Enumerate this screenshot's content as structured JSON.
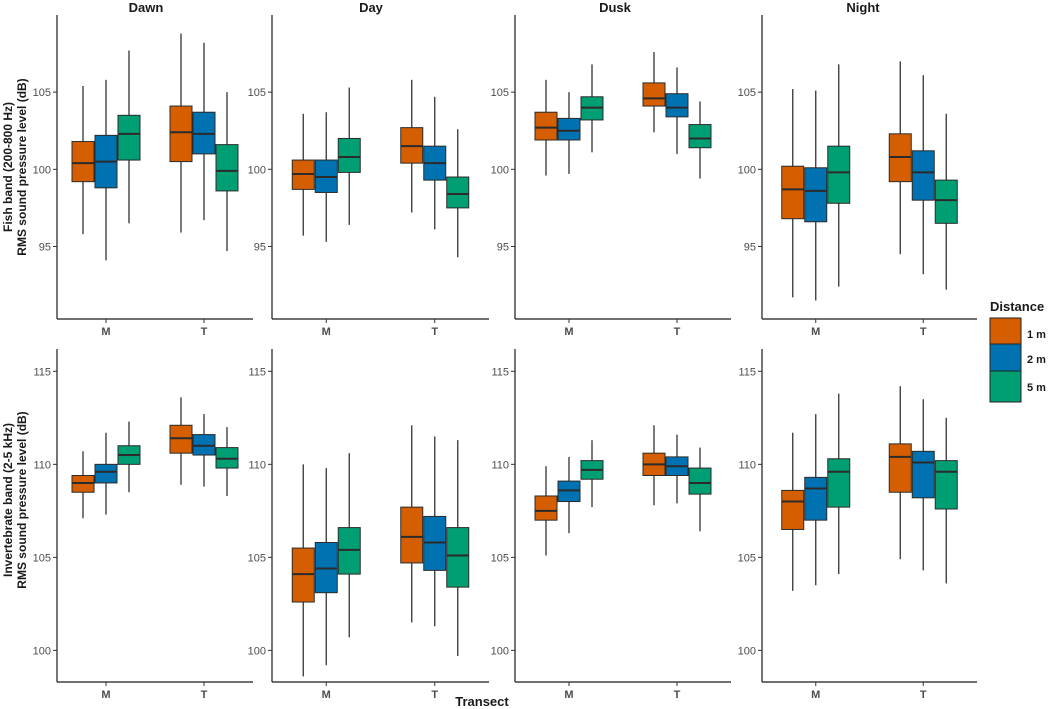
{
  "chart_data": {
    "type": "boxplot",
    "periods": [
      "Dawn",
      "Day",
      "Dusk",
      "Night"
    ],
    "categories": [
      "M",
      "T"
    ],
    "xlabel": "Transect",
    "legend": {
      "title": "Distance",
      "placement": "right",
      "entries": [
        {
          "label": "1 m",
          "color": "#D55E00"
        },
        {
          "label": "2 m",
          "color": "#0072B2"
        },
        {
          "label": "5 m",
          "color": "#009E73"
        }
      ]
    },
    "rows": [
      {
        "band": "fish",
        "ylabel_line1": "Fish band (200-800 Hz)",
        "ylabel_line2": "RMS sound pressure level (dB)",
        "ylim": [
          90.3,
          110
        ],
        "yticks": [
          95,
          100,
          105
        ],
        "panels": [
          {
            "period": "Dawn",
            "groups": [
              {
                "category": "M",
                "boxes": [
                  {
                    "min": 95.8,
                    "q1": 99.2,
                    "median": 100.4,
                    "q3": 101.8,
                    "max": 105.4
                  },
                  {
                    "min": 94.1,
                    "q1": 98.8,
                    "median": 100.5,
                    "q3": 102.2,
                    "max": 105.8
                  },
                  {
                    "min": 96.5,
                    "q1": 100.6,
                    "median": 102.3,
                    "q3": 103.5,
                    "max": 107.7
                  }
                ]
              },
              {
                "category": "T",
                "boxes": [
                  {
                    "min": 95.9,
                    "q1": 100.5,
                    "median": 102.4,
                    "q3": 104.1,
                    "max": 108.8
                  },
                  {
                    "min": 96.7,
                    "q1": 101.0,
                    "median": 102.3,
                    "q3": 103.7,
                    "max": 108.2
                  },
                  {
                    "min": 94.7,
                    "q1": 98.6,
                    "median": 99.9,
                    "q3": 101.6,
                    "max": 105.0
                  }
                ]
              }
            ]
          },
          {
            "period": "Day",
            "groups": [
              {
                "category": "M",
                "boxes": [
                  {
                    "min": 95.7,
                    "q1": 98.7,
                    "median": 99.7,
                    "q3": 100.6,
                    "max": 103.6
                  },
                  {
                    "min": 95.3,
                    "q1": 98.5,
                    "median": 99.5,
                    "q3": 100.6,
                    "max": 103.7
                  },
                  {
                    "min": 96.4,
                    "q1": 99.8,
                    "median": 100.8,
                    "q3": 102.0,
                    "max": 105.3
                  }
                ]
              },
              {
                "category": "T",
                "boxes": [
                  {
                    "min": 97.2,
                    "q1": 100.4,
                    "median": 101.5,
                    "q3": 102.7,
                    "max": 105.8
                  },
                  {
                    "min": 96.1,
                    "q1": 99.3,
                    "median": 100.4,
                    "q3": 101.5,
                    "max": 104.7
                  },
                  {
                    "min": 94.3,
                    "q1": 97.5,
                    "median": 98.4,
                    "q3": 99.5,
                    "max": 102.6
                  }
                ]
              }
            ]
          },
          {
            "period": "Dusk",
            "groups": [
              {
                "category": "M",
                "boxes": [
                  {
                    "min": 99.6,
                    "q1": 101.9,
                    "median": 102.7,
                    "q3": 103.7,
                    "max": 105.8
                  },
                  {
                    "min": 99.7,
                    "q1": 101.9,
                    "median": 102.5,
                    "q3": 103.3,
                    "max": 105.0
                  },
                  {
                    "min": 101.1,
                    "q1": 103.2,
                    "median": 104.0,
                    "q3": 104.7,
                    "max": 106.8
                  }
                ]
              },
              {
                "category": "T",
                "boxes": [
                  {
                    "min": 102.4,
                    "q1": 104.1,
                    "median": 104.6,
                    "q3": 105.6,
                    "max": 107.6
                  },
                  {
                    "min": 101.0,
                    "q1": 103.4,
                    "median": 104.0,
                    "q3": 104.9,
                    "max": 106.6
                  },
                  {
                    "min": 99.4,
                    "q1": 101.4,
                    "median": 102.0,
                    "q3": 102.9,
                    "max": 104.4
                  }
                ]
              }
            ]
          },
          {
            "period": "Night",
            "groups": [
              {
                "category": "M",
                "boxes": [
                  {
                    "min": 91.7,
                    "q1": 96.8,
                    "median": 98.7,
                    "q3": 100.2,
                    "max": 105.2
                  },
                  {
                    "min": 91.5,
                    "q1": 96.6,
                    "median": 98.6,
                    "q3": 100.1,
                    "max": 105.1
                  },
                  {
                    "min": 92.4,
                    "q1": 97.8,
                    "median": 99.8,
                    "q3": 101.5,
                    "max": 106.8
                  }
                ]
              },
              {
                "category": "T",
                "boxes": [
                  {
                    "min": 94.5,
                    "q1": 99.2,
                    "median": 100.8,
                    "q3": 102.3,
                    "max": 107.0
                  },
                  {
                    "min": 93.2,
                    "q1": 98.0,
                    "median": 99.8,
                    "q3": 101.2,
                    "max": 106.1
                  },
                  {
                    "min": 92.2,
                    "q1": 96.5,
                    "median": 98.0,
                    "q3": 99.3,
                    "max": 103.6
                  }
                ]
              }
            ]
          }
        ]
      },
      {
        "band": "invertebrate",
        "ylabel_line1": "Invertebrate band (2-5 kHz)",
        "ylabel_line2": "RMS sound pressure level (dB)",
        "ylim": [
          98.3,
          116.2
        ],
        "yticks": [
          100,
          105,
          110,
          115
        ],
        "panels": [
          {
            "period": "Dawn",
            "groups": [
              {
                "category": "M",
                "boxes": [
                  {
                    "min": 107.1,
                    "q1": 108.5,
                    "median": 109.0,
                    "q3": 109.4,
                    "max": 110.7
                  },
                  {
                    "min": 107.3,
                    "q1": 109.0,
                    "median": 109.6,
                    "q3": 110.0,
                    "max": 111.7
                  },
                  {
                    "min": 108.5,
                    "q1": 110.0,
                    "median": 110.5,
                    "q3": 111.0,
                    "max": 112.3
                  }
                ]
              },
              {
                "category": "T",
                "boxes": [
                  {
                    "min": 108.9,
                    "q1": 110.6,
                    "median": 111.4,
                    "q3": 112.1,
                    "max": 113.6
                  },
                  {
                    "min": 108.8,
                    "q1": 110.5,
                    "median": 111.0,
                    "q3": 111.6,
                    "max": 112.7
                  },
                  {
                    "min": 108.3,
                    "q1": 109.8,
                    "median": 110.3,
                    "q3": 110.9,
                    "max": 112.0
                  }
                ]
              }
            ]
          },
          {
            "period": "Day",
            "groups": [
              {
                "category": "M",
                "boxes": [
                  {
                    "min": 98.6,
                    "q1": 102.6,
                    "median": 104.1,
                    "q3": 105.5,
                    "max": 110.0
                  },
                  {
                    "min": 99.2,
                    "q1": 103.1,
                    "median": 104.4,
                    "q3": 105.8,
                    "max": 109.8
                  },
                  {
                    "min": 100.7,
                    "q1": 104.1,
                    "median": 105.4,
                    "q3": 106.6,
                    "max": 110.6
                  }
                ]
              },
              {
                "category": "T",
                "boxes": [
                  {
                    "min": 101.5,
                    "q1": 104.7,
                    "median": 106.1,
                    "q3": 107.7,
                    "max": 112.1
                  },
                  {
                    "min": 101.3,
                    "q1": 104.3,
                    "median": 105.8,
                    "q3": 107.2,
                    "max": 111.5
                  },
                  {
                    "min": 99.7,
                    "q1": 103.4,
                    "median": 105.1,
                    "q3": 106.6,
                    "max": 111.3
                  }
                ]
              }
            ]
          },
          {
            "period": "Dusk",
            "groups": [
              {
                "category": "M",
                "boxes": [
                  {
                    "min": 105.1,
                    "q1": 107.0,
                    "median": 107.5,
                    "q3": 108.3,
                    "max": 109.9
                  },
                  {
                    "min": 106.3,
                    "q1": 108.0,
                    "median": 108.6,
                    "q3": 109.1,
                    "max": 110.4
                  },
                  {
                    "min": 107.7,
                    "q1": 109.2,
                    "median": 109.7,
                    "q3": 110.2,
                    "max": 111.3
                  }
                ]
              },
              {
                "category": "T",
                "boxes": [
                  {
                    "min": 107.8,
                    "q1": 109.4,
                    "median": 110.0,
                    "q3": 110.6,
                    "max": 112.1
                  },
                  {
                    "min": 107.9,
                    "q1": 109.4,
                    "median": 109.9,
                    "q3": 110.4,
                    "max": 111.6
                  },
                  {
                    "min": 106.4,
                    "q1": 108.4,
                    "median": 109.0,
                    "q3": 109.8,
                    "max": 110.9
                  }
                ]
              }
            ]
          },
          {
            "period": "Night",
            "groups": [
              {
                "category": "M",
                "boxes": [
                  {
                    "min": 103.2,
                    "q1": 106.5,
                    "median": 108.0,
                    "q3": 108.6,
                    "max": 111.7
                  },
                  {
                    "min": 103.5,
                    "q1": 107.0,
                    "median": 108.7,
                    "q3": 109.3,
                    "max": 112.7
                  },
                  {
                    "min": 104.1,
                    "q1": 107.7,
                    "median": 109.6,
                    "q3": 110.3,
                    "max": 113.8
                  }
                ]
              },
              {
                "category": "T",
                "boxes": [
                  {
                    "min": 104.9,
                    "q1": 108.5,
                    "median": 110.4,
                    "q3": 111.1,
                    "max": 114.2
                  },
                  {
                    "min": 104.3,
                    "q1": 108.2,
                    "median": 110.1,
                    "q3": 110.7,
                    "max": 113.5
                  },
                  {
                    "min": 103.6,
                    "q1": 107.6,
                    "median": 109.6,
                    "q3": 110.2,
                    "max": 112.5
                  }
                ]
              }
            ]
          }
        ]
      }
    ]
  }
}
